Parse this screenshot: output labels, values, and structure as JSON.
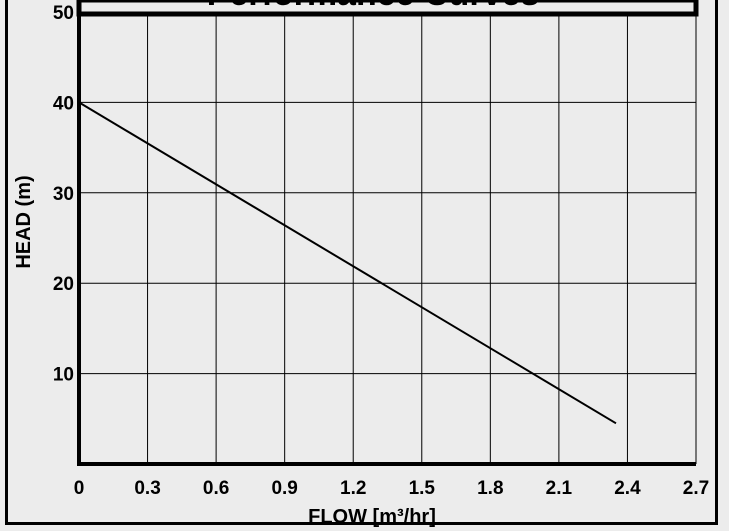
{
  "chart_data": {
    "type": "line",
    "title": "Performance Curves",
    "xlabel": "FLOW [m³/hr]",
    "ylabel": "HEAD (m)",
    "xlim": [
      0,
      2.7
    ],
    "ylim": [
      0,
      50
    ],
    "x_ticks": [
      "0",
      "0.3",
      "0.6",
      "0.9",
      "1.2",
      "1.5",
      "1.8",
      "2.1",
      "2.4",
      "2.7"
    ],
    "y_ticks": [
      "10",
      "20",
      "30",
      "40",
      "50"
    ],
    "grid": true,
    "series": [
      {
        "x": [
          0,
          2.35
        ],
        "y": [
          40,
          4.5
        ]
      }
    ],
    "colors": {
      "background": "#ececec",
      "line": "#000000",
      "grid": "#000000"
    }
  }
}
